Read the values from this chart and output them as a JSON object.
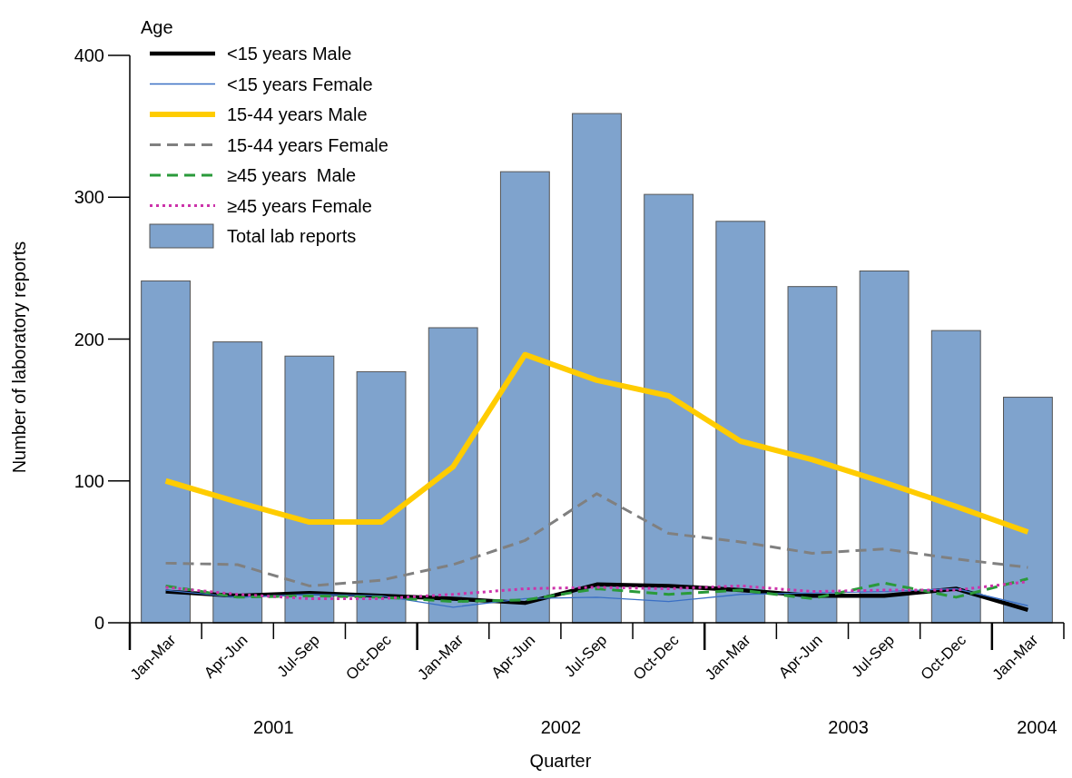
{
  "chart_data": {
    "type": "line",
    "xlabel": "Quarter",
    "ylabel": "Number of laboratory reports",
    "legend_title": "Age",
    "legend": "top left",
    "grid": false,
    "categories": [
      "Jan-Mar",
      "Apr-Jun",
      "Jul-Sep",
      "Oct-Dec",
      "Jan-Mar",
      "Apr-Jun",
      "Jul-Sep",
      "Oct-Dec",
      "Jan-Mar",
      "Apr-Jun",
      "Jul-Sep",
      "Oct-Dec",
      "Jan-Mar"
    ],
    "ylim": [
      0,
      400
    ],
    "yticks": [
      0,
      100,
      200,
      300,
      400
    ],
    "annotations": [
      "2001",
      "2002",
      "2003",
      "2004"
    ],
    "series": [
      {
        "name": "<15 years Male",
        "color": "#000000",
        "line_style": "solid",
        "values": [
          22,
          19,
          21,
          19,
          17,
          14,
          27,
          26,
          23,
          19,
          19,
          24,
          9
        ]
      },
      {
        "name": "<15 years Female",
        "color": "#3a6fc4",
        "line_style": "solid",
        "values": [
          23,
          18,
          20,
          19,
          11,
          17,
          18,
          15,
          20,
          21,
          22,
          24,
          12
        ]
      },
      {
        "name": "15-44 years Male",
        "color": "#ffcc00",
        "line_style": "solid",
        "values": [
          100,
          85,
          71,
          71,
          110,
          189,
          171,
          160,
          128,
          115,
          99,
          82,
          64
        ]
      },
      {
        "name": "15-44 years Female",
        "color": "#808080",
        "line_style": "dashed",
        "values": [
          42,
          41,
          26,
          30,
          41,
          58,
          91,
          63,
          57,
          49,
          52,
          45,
          39
        ]
      },
      {
        "name": "≥45 years  Male",
        "color": "#2a9a3a",
        "line_style": "dashed",
        "values": [
          26,
          18,
          19,
          18,
          15,
          16,
          24,
          20,
          23,
          17,
          28,
          18,
          31
        ]
      },
      {
        "name": "≥45 years Female",
        "color": "#cc33aa",
        "line_style": "dotted",
        "values": [
          25,
          20,
          17,
          17,
          20,
          24,
          25,
          24,
          26,
          22,
          23,
          23,
          29
        ]
      },
      {
        "name": "Total lab reports",
        "type": "bar",
        "color": "#7fa3cd",
        "values": [
          241,
          198,
          188,
          177,
          208,
          318,
          359,
          302,
          283,
          237,
          248,
          206,
          159
        ]
      }
    ]
  }
}
